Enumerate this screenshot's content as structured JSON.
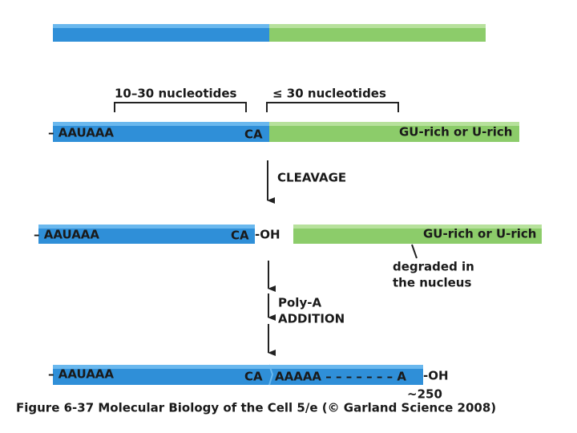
{
  "brackets": [
    "10–30 nucleotides",
    "≤ 30 nucleotides"
  ],
  "row_1": {
    "signal": "– AAUAAA",
    "site": "CA",
    "downstream": "GU-rich or U-rich"
  },
  "step_1": "CLEAVAGE",
  "row_2": {
    "signal": "– AAUAAA",
    "site": "CA",
    "end": "-OH",
    "downstream": "GU-rich or U-rich",
    "fate": [
      "degraded in",
      "the nucleus"
    ]
  },
  "step_2": [
    "Poly-A",
    "ADDITION"
  ],
  "row_3": {
    "signal": "– AAUAAA",
    "site": "CA",
    "tail": "AAAAA – – – – – – – A",
    "end": "-OH",
    "length": "~250"
  },
  "caption": "Figure 6-37 Molecular Biology of the Cell 5/e (© Garland Science 2008)"
}
